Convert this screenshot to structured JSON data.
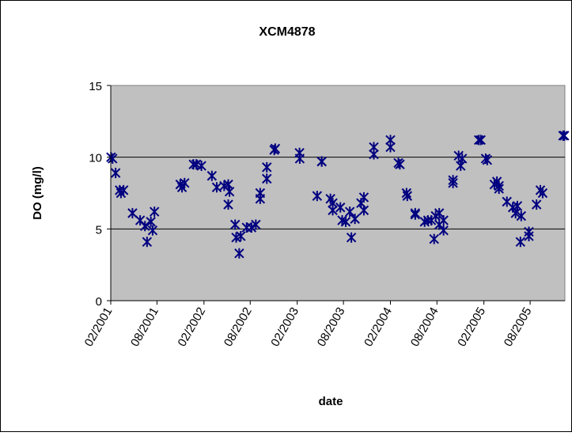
{
  "chart_data": {
    "type": "scatter",
    "title": "XCM4878",
    "xlabel": "date",
    "ylabel": "DO (mg/l)",
    "ylim": [
      0,
      15
    ],
    "xlim": [
      "2001-02-01",
      "2005-12-15"
    ],
    "yticks": [
      "0",
      "5",
      "10",
      "15"
    ],
    "xticks": [
      {
        "date": "2001-02-01",
        "label": "02/2001"
      },
      {
        "date": "2001-08-01",
        "label": "08/2001"
      },
      {
        "date": "2002-02-01",
        "label": "02/2002"
      },
      {
        "date": "2002-08-01",
        "label": "08/2002"
      },
      {
        "date": "2003-02-01",
        "label": "02/2003"
      },
      {
        "date": "2003-08-01",
        "label": "08/2003"
      },
      {
        "date": "2004-02-01",
        "label": "02/2004"
      },
      {
        "date": "2004-08-01",
        "label": "08/2004"
      },
      {
        "date": "2005-02-01",
        "label": "02/2005"
      },
      {
        "date": "2005-08-01",
        "label": "08/2005"
      }
    ],
    "grid": "horizontal",
    "plot_background": "#c0c0c0",
    "marker_color": "#000080",
    "marker": "asterisk",
    "series": [
      {
        "points": [
          [
            "2001-02-02",
            10.0
          ],
          [
            "2001-02-08",
            9.9
          ],
          [
            "2001-02-20",
            8.9
          ],
          [
            "2001-03-08",
            7.7
          ],
          [
            "2001-03-13",
            7.5
          ],
          [
            "2001-03-23",
            7.7
          ],
          [
            "2001-04-27",
            6.1
          ],
          [
            "2001-05-27",
            5.6
          ],
          [
            "2001-06-15",
            5.2
          ],
          [
            "2001-06-23",
            4.1
          ],
          [
            "2001-07-08",
            5.5
          ],
          [
            "2001-07-15",
            4.9
          ],
          [
            "2001-07-22",
            6.2
          ],
          [
            "2001-10-31",
            8.1
          ],
          [
            "2001-11-07",
            7.9
          ],
          [
            "2001-11-17",
            8.2
          ],
          [
            "2001-12-22",
            9.5
          ],
          [
            "2002-01-02",
            9.5
          ],
          [
            "2002-01-22",
            9.4
          ],
          [
            "2002-03-04",
            8.7
          ],
          [
            "2002-03-23",
            7.9
          ],
          [
            "2002-04-21",
            8.0
          ],
          [
            "2002-05-07",
            6.7
          ],
          [
            "2002-05-12",
            7.6
          ],
          [
            "2002-05-07",
            8.1
          ],
          [
            "2002-06-03",
            5.3
          ],
          [
            "2002-06-07",
            4.4
          ],
          [
            "2002-06-25",
            4.5
          ],
          [
            "2002-06-19",
            3.3
          ],
          [
            "2002-07-18",
            5.1
          ],
          [
            "2002-08-06",
            5.1
          ],
          [
            "2002-08-23",
            5.3
          ],
          [
            "2002-09-09",
            7.1
          ],
          [
            "2002-09-09",
            7.5
          ],
          [
            "2002-10-05",
            8.5
          ],
          [
            "2002-10-05",
            9.3
          ],
          [
            "2002-11-07",
            10.6
          ],
          [
            "2002-11-03",
            10.5
          ],
          [
            "2003-02-10",
            10.3
          ],
          [
            "2003-02-11",
            9.9
          ],
          [
            "2003-04-20",
            7.3
          ],
          [
            "2003-05-08",
            9.7
          ],
          [
            "2003-05-08",
            9.7
          ],
          [
            "2003-06-11",
            7.1
          ],
          [
            "2003-06-20",
            6.3
          ],
          [
            "2003-06-20",
            6.8
          ],
          [
            "2003-07-27",
            5.6
          ],
          [
            "2003-07-20",
            6.5
          ],
          [
            "2003-08-10",
            5.5
          ],
          [
            "2003-08-26",
            6.2
          ],
          [
            "2003-09-01",
            4.4
          ],
          [
            "2003-09-15",
            5.7
          ],
          [
            "2003-10-09",
            6.8
          ],
          [
            "2003-10-20",
            7.2
          ],
          [
            "2003-10-20",
            6.3
          ],
          [
            "2003-11-28",
            10.7
          ],
          [
            "2003-11-28",
            10.2
          ],
          [
            "2004-02-01",
            11.2
          ],
          [
            "2004-02-01",
            10.7
          ],
          [
            "2004-03-03",
            9.6
          ],
          [
            "2004-03-09",
            9.5
          ],
          [
            "2004-04-04",
            7.5
          ],
          [
            "2004-04-07",
            7.3
          ],
          [
            "2004-05-08",
            6.0
          ],
          [
            "2004-05-08",
            6.1
          ],
          [
            "2004-06-14",
            5.5
          ],
          [
            "2004-06-27",
            5.6
          ],
          [
            "2004-07-10",
            5.6
          ],
          [
            "2004-07-21",
            4.3
          ],
          [
            "2004-07-27",
            5.9
          ],
          [
            "2004-08-10",
            5.3
          ],
          [
            "2004-08-10",
            6.1
          ],
          [
            "2004-08-27",
            5.6
          ],
          [
            "2004-08-27",
            4.9
          ],
          [
            "2004-10-03",
            8.4
          ],
          [
            "2004-10-03",
            8.2
          ],
          [
            "2004-10-25",
            10.1
          ],
          [
            "2004-11-02",
            9.4
          ],
          [
            "2004-11-08",
            9.9
          ],
          [
            "2005-01-12",
            11.2
          ],
          [
            "2005-01-20",
            11.2
          ],
          [
            "2005-02-08",
            9.9
          ],
          [
            "2005-02-14",
            9.8
          ],
          [
            "2005-03-14",
            8.1
          ],
          [
            "2005-03-24",
            8.3
          ],
          [
            "2005-04-01",
            8.0
          ],
          [
            "2005-04-01",
            7.8
          ],
          [
            "2005-05-02",
            6.9
          ],
          [
            "2005-05-25",
            6.5
          ],
          [
            "2005-06-05",
            6.1
          ],
          [
            "2005-06-12",
            6.6
          ],
          [
            "2005-06-24",
            4.1
          ],
          [
            "2005-06-27",
            5.9
          ],
          [
            "2005-07-27",
            4.5
          ],
          [
            "2005-07-27",
            4.8
          ],
          [
            "2005-08-26",
            6.7
          ],
          [
            "2005-09-10",
            7.7
          ],
          [
            "2005-09-19",
            7.5
          ],
          [
            "2005-12-08",
            11.5
          ],
          [
            "2005-12-13",
            11.5
          ]
        ]
      }
    ]
  }
}
